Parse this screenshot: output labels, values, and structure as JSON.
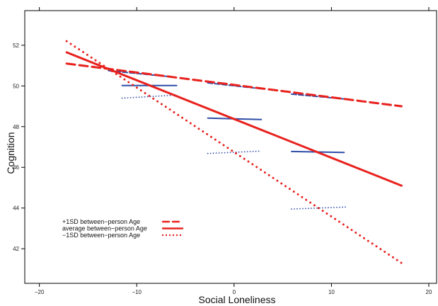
{
  "chart_data": {
    "type": "line",
    "xlabel": "Social Loneliness",
    "ylabel": "Cognition",
    "xlim": [
      -21.5,
      20.8
    ],
    "ylim": [
      40.3,
      53.7
    ],
    "x_ticks": [
      -20,
      -10,
      0,
      10,
      20
    ],
    "y_ticks": [
      42,
      44,
      46,
      48,
      50,
      52
    ],
    "grid": false,
    "legend_position": "bottom-left",
    "colors": {
      "red": "#e8211d",
      "blue": "#2f4da8",
      "axis": "#000000"
    },
    "series": [
      {
        "name": "+1SD between−person Age",
        "style": "dashed",
        "color": "#e8211d",
        "x": [
          -17.2,
          17.2
        ],
        "y": [
          51.1,
          49.0
        ]
      },
      {
        "name": "average between−person Age",
        "style": "solid",
        "color": "#e8211d",
        "x": [
          -17.2,
          17.2
        ],
        "y": [
          51.65,
          45.1
        ]
      },
      {
        "name": "−1SD between−person Age",
        "style": "dotted",
        "color": "#e8211d",
        "x": [
          -17.2,
          17.2
        ],
        "y": [
          52.2,
          41.3
        ]
      }
    ],
    "segments": [
      {
        "group": "+1SD",
        "style": "dashed",
        "color": "#2f4da8",
        "x": [
          -12.9,
          -6.5
        ],
        "y": [
          50.75,
          50.45
        ]
      },
      {
        "group": "+1SD",
        "style": "dashed",
        "color": "#2f4da8",
        "x": [
          -2.7,
          3.0
        ],
        "y": [
          50.15,
          49.85
        ]
      },
      {
        "group": "+1SD",
        "style": "dashed",
        "color": "#2f4da8",
        "x": [
          5.9,
          11.5
        ],
        "y": [
          49.6,
          49.35
        ]
      },
      {
        "group": "average",
        "style": "solid",
        "color": "#2f4da8",
        "x": [
          -11.5,
          -5.9
        ],
        "y": [
          50.02,
          50.02
        ]
      },
      {
        "group": "average",
        "style": "solid",
        "color": "#2f4da8",
        "x": [
          -2.7,
          2.8
        ],
        "y": [
          48.42,
          48.35
        ]
      },
      {
        "group": "average",
        "style": "solid",
        "color": "#2f4da8",
        "x": [
          5.9,
          11.3
        ],
        "y": [
          46.78,
          46.73
        ]
      },
      {
        "group": "-1SD",
        "style": "dotted",
        "color": "#2f4da8",
        "x": [
          -11.5,
          -5.9
        ],
        "y": [
          49.4,
          49.55
        ]
      },
      {
        "group": "-1SD",
        "style": "dotted",
        "color": "#2f4da8",
        "x": [
          -2.7,
          2.8
        ],
        "y": [
          46.68,
          46.8
        ]
      },
      {
        "group": "-1SD",
        "style": "dotted",
        "color": "#2f4da8",
        "x": [
          5.9,
          11.5
        ],
        "y": [
          43.95,
          44.05
        ]
      }
    ]
  }
}
